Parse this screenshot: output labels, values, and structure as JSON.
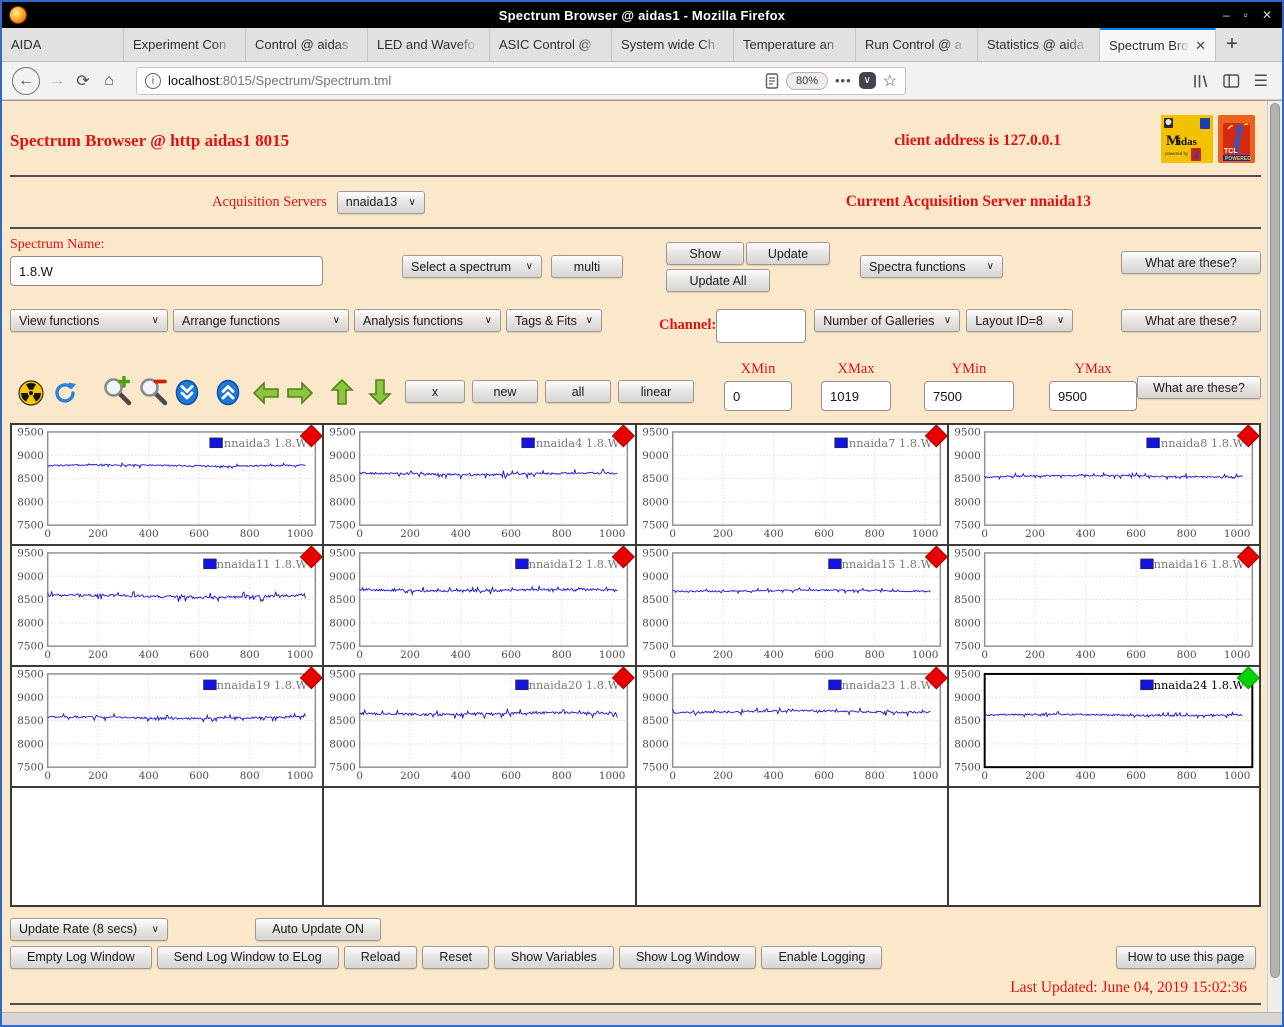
{
  "window": {
    "title": "Spectrum Browser @ aidas1 - Mozilla Firefox"
  },
  "glyphs": {
    "minimize": "–",
    "maximize": "▫",
    "close": "✕",
    "tab_close": "✕",
    "back": "←",
    "forward": "→",
    "reload": "⟳",
    "home": "⌂",
    "menu": "☰",
    "star": "☆",
    "overflow": "•••",
    "pocket_chevron": "∨",
    "info": "i",
    "select_chevron": "∨"
  },
  "browser": {
    "tabs": [
      {
        "label": "AIDA",
        "active": false
      },
      {
        "label": "Experiment Con",
        "active": false
      },
      {
        "label": "Control @ aidas",
        "active": false
      },
      {
        "label": "LED and Wavefo",
        "active": false
      },
      {
        "label": "ASIC Control @",
        "active": false
      },
      {
        "label": "System wide Ch",
        "active": false
      },
      {
        "label": "Temperature an",
        "active": false
      },
      {
        "label": "Run Control @ a",
        "active": false
      },
      {
        "label": "Statistics @ aida",
        "active": false
      },
      {
        "label": "Spectrum Bro",
        "active": true,
        "closable": true
      }
    ],
    "new_tab_label": "+",
    "url_host": "localhost",
    "url_path": ":8015/Spectrum/Spectrum.tml",
    "zoom_badge": "80%"
  },
  "header": {
    "title": "Spectrum Browser @ http aidas1 8015",
    "client": "client address is 127.0.0.1",
    "logo_midas": "Midas",
    "logo_midas_sub": "powered by",
    "logo_tcl": "TCL",
    "logo_tcl_sub": "POWERED"
  },
  "acquisition": {
    "label": "Acquisition Servers",
    "server_select": "nnaida13",
    "current": "Current Acquisition Server nnaida13"
  },
  "spectrum": {
    "name_label": "Spectrum Name:",
    "name_value": "1.8.W",
    "select_spectrum": "Select a spectrum",
    "multi": "multi",
    "show": "Show",
    "update": "Update",
    "update_all": "Update All",
    "spectra_functions": "Spectra functions",
    "what": "What are these?"
  },
  "functions_row": {
    "view": "View functions",
    "arrange": "Arrange functions",
    "analysis": "Analysis functions",
    "tags": "Tags & Fits",
    "channel_label": "Channel:",
    "channel_value": "",
    "galleries": "Number of Galleries",
    "layout": "Layout ID=8",
    "what": "What are these?"
  },
  "toolbar": {
    "icons": [
      "radioactive",
      "refresh",
      "zoom-in",
      "zoom-out",
      "collapse-down",
      "expand-up",
      "arrow-left",
      "arrow-right",
      "arrow-up",
      "arrow-down"
    ],
    "buttons": [
      "x",
      "new",
      "all",
      "linear"
    ],
    "xmin_label": "XMin",
    "xmin": "0",
    "xmax_label": "XMax",
    "xmax": "1019",
    "ymin_label": "YMin",
    "ymin": "7500",
    "ymax_label": "YMax",
    "ymax": "9500",
    "what": "What are these?"
  },
  "chart_data": {
    "type": "line",
    "columns": 4,
    "empty_row_cells": 4,
    "xlim": [
      0,
      1060
    ],
    "ylim": [
      7500,
      9500
    ],
    "xticks": [
      0,
      200,
      400,
      600,
      800,
      1000
    ],
    "yticks": [
      7500,
      8000,
      8500,
      9000,
      9500
    ],
    "grid": true,
    "legend_position": "top-right",
    "line_color": "#1414dd",
    "series": [
      {
        "name": "nnaida3",
        "legend": "nnaida3 1.8.W",
        "has_data": true,
        "mean": 8780,
        "noise": 30,
        "marker": "#e80000",
        "marker_stroke": "#a80000",
        "selected": false
      },
      {
        "name": "nnaida4",
        "legend": "nnaida4 1.8.W",
        "has_data": true,
        "mean": 8600,
        "noise": 45,
        "marker": "#e80000",
        "marker_stroke": "#a80000",
        "selected": false
      },
      {
        "name": "nnaida7",
        "legend": "nnaida7 1.8.W",
        "has_data": false,
        "mean": null,
        "noise": 0,
        "marker": "#e80000",
        "marker_stroke": "#a80000",
        "selected": false
      },
      {
        "name": "nnaida8",
        "legend": "nnaida8 1.8.W",
        "has_data": true,
        "mean": 8550,
        "noise": 35,
        "marker": "#e80000",
        "marker_stroke": "#a80000",
        "selected": false
      },
      {
        "name": "nnaida11",
        "legend": "nnaida11 1.8.W",
        "has_data": true,
        "mean": 8570,
        "noise": 55,
        "marker": "#e80000",
        "marker_stroke": "#a80000",
        "selected": false
      },
      {
        "name": "nnaida12",
        "legend": "nnaida12 1.8.W",
        "has_data": true,
        "mean": 8700,
        "noise": 45,
        "marker": "#e80000",
        "marker_stroke": "#a80000",
        "selected": false
      },
      {
        "name": "nnaida15",
        "legend": "nnaida15 1.8.W",
        "has_data": true,
        "mean": 8690,
        "noise": 30,
        "marker": "#e80000",
        "marker_stroke": "#a80000",
        "selected": false
      },
      {
        "name": "nnaida16",
        "legend": "nnaida16 1.8.W",
        "has_data": false,
        "mean": null,
        "noise": 0,
        "marker": "#e80000",
        "marker_stroke": "#a80000",
        "selected": false
      },
      {
        "name": "nnaida19",
        "legend": "nnaida19 1.8.W",
        "has_data": true,
        "mean": 8560,
        "noise": 40,
        "marker": "#e80000",
        "marker_stroke": "#a80000",
        "selected": false
      },
      {
        "name": "nnaida20",
        "legend": "nnaida20 1.8.W",
        "has_data": true,
        "mean": 8650,
        "noise": 50,
        "marker": "#e80000",
        "marker_stroke": "#a80000",
        "selected": false
      },
      {
        "name": "nnaida23",
        "legend": "nnaida23 1.8.W",
        "has_data": true,
        "mean": 8690,
        "noise": 40,
        "marker": "#e80000",
        "marker_stroke": "#a80000",
        "selected": false
      },
      {
        "name": "nnaida24",
        "legend": "nnaida24 1.8.W",
        "has_data": true,
        "mean": 8620,
        "noise": 35,
        "marker": "#00d400",
        "marker_stroke": "#009b00",
        "selected": true
      }
    ]
  },
  "footer": {
    "update_rate": "Update Rate (8 secs)",
    "auto_update": "Auto Update ON",
    "buttons": [
      "Empty Log Window",
      "Send Log Window to ELog",
      "Reload",
      "Reset",
      "Show Variables",
      "Show Log Window",
      "Enable Logging"
    ],
    "help": "How to use this page",
    "last_updated": "Last Updated: June 04, 2019 15:02:36"
  }
}
